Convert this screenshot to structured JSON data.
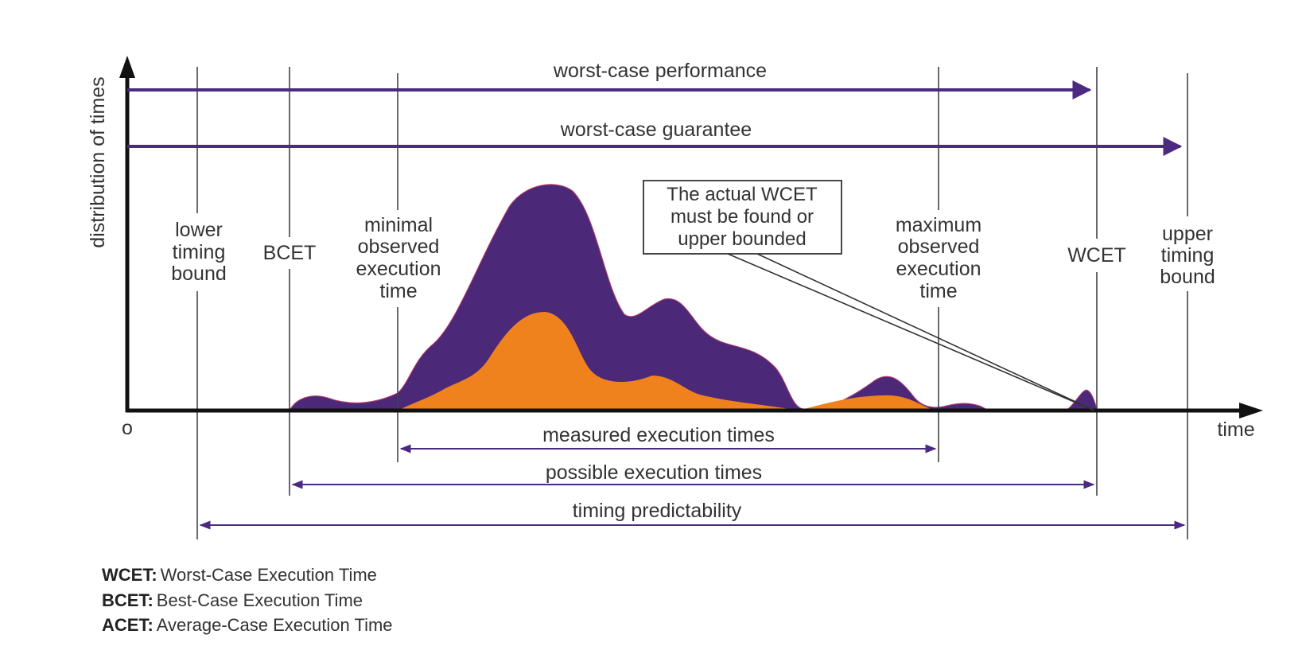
{
  "axis": {
    "y_label": "distribution of times",
    "x_label": "time",
    "origin": "o"
  },
  "top_arrows": {
    "performance": "worst-case performance",
    "guarantee": "worst-case guarantee"
  },
  "markers": {
    "lower_bound": [
      "lower",
      "timing",
      "bound"
    ],
    "bcet": "BCET",
    "min_observed": [
      "minimal",
      "observed",
      "execution",
      "time"
    ],
    "max_observed": [
      "maximum",
      "observed",
      "execution",
      "time"
    ],
    "wcet": "WCET",
    "upper_bound": [
      "upper",
      "timing",
      "bound"
    ]
  },
  "callout": [
    "The actual WCET",
    "must be found or",
    "upper bounded"
  ],
  "bottom_arrows": {
    "measured": "measured execution times",
    "possible": "possible execution times",
    "predictability": "timing predictability"
  },
  "legend": [
    {
      "abbr": "WCET:",
      "text": "Worst-Case Execution Time"
    },
    {
      "abbr": "BCET:",
      "text": "Best-Case Execution Time"
    },
    {
      "abbr": "ACET:",
      "text": "Average-Case Execution Time"
    }
  ],
  "colors": {
    "possible_distribution": "#4b2878",
    "measured_distribution": "#f0821e",
    "arrows": "#4b2a82",
    "axis": "#111111"
  }
}
